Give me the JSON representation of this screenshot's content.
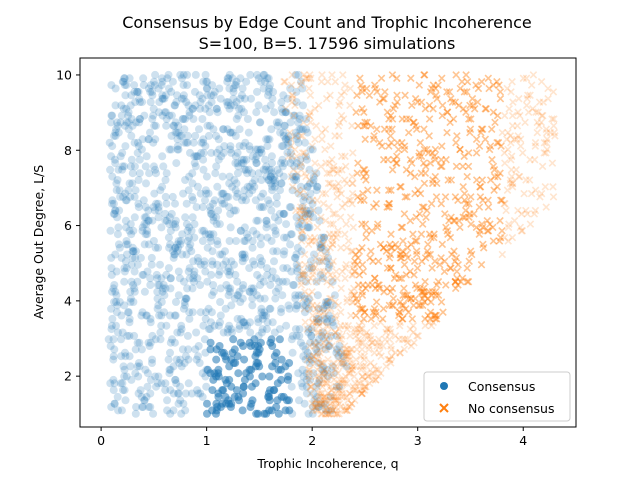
{
  "chart_data": {
    "type": "scatter",
    "title": "Consensus by Edge Count and Trophic Incoherence",
    "subtitle": "S=100, B=5. 17596 simulations",
    "xlabel": "Trophic Incoherence, q",
    "ylabel": "Average Out Degree, L/S",
    "xlim": [
      -0.2,
      4.5
    ],
    "ylim": [
      0.65,
      10.45
    ],
    "xticks": [
      0,
      1,
      2,
      3,
      4
    ],
    "yticks": [
      2,
      4,
      6,
      8,
      10
    ],
    "y_step": 0.09,
    "grid": false,
    "legend_position": "lower-right",
    "colors": {
      "consensus": "#1f77b4",
      "no_consensus": "#ff7f0e"
    },
    "series": [
      {
        "name": "Consensus",
        "marker": "circle",
        "color": "#1f77b4",
        "description_regions": [
          {
            "y_range": [
              1.0,
              10.0
            ],
            "q_min": 0.05,
            "q_max_at_low_y": 2.4,
            "q_max_at_high_y": 1.9
          }
        ]
      },
      {
        "name": "No consensus",
        "marker": "x",
        "color": "#ff7f0e",
        "description_regions": [
          {
            "y_range": [
              1.0,
              10.0
            ],
            "q_min_at_low_y": 2.0,
            "q_min_at_high_y": 1.7,
            "q_max_at_high_y": 4.3
          }
        ]
      }
    ]
  },
  "legend": {
    "consensus_label": "Consensus",
    "no_consensus_label": "No consensus"
  }
}
